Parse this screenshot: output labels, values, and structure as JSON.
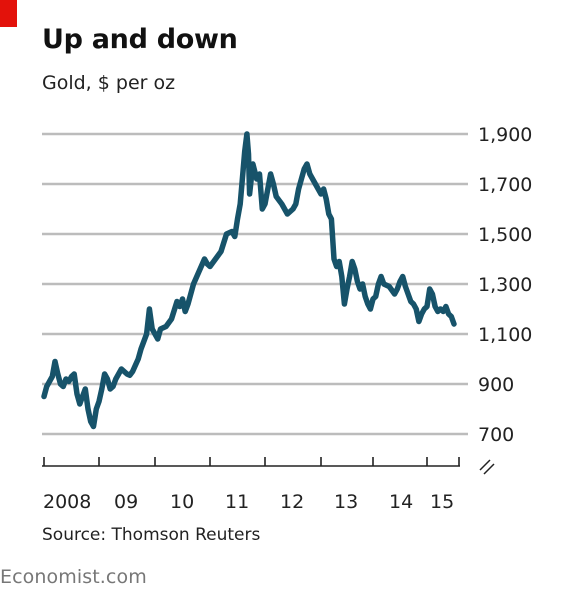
{
  "header": {
    "title": "Up and down",
    "subtitle": "Gold, $ per oz"
  },
  "footer": {
    "source": "Source: Thomson Reuters",
    "brand": "Economist.com"
  },
  "colors": {
    "accent": "#e3120b",
    "line": "#17536a",
    "grid": "#bcbcbc"
  },
  "chart_data": {
    "type": "line",
    "title": "Up and down",
    "subtitle": "Gold, $ per oz",
    "xlabel": "",
    "ylabel": "",
    "xlim": [
      2008.0,
      2015.6
    ],
    "ylim": [
      700,
      1900
    ],
    "y_ticks": [
      700,
      900,
      1100,
      1300,
      1500,
      1700,
      1900
    ],
    "y_tick_labels": [
      "700",
      "900",
      "1,100",
      "1,300",
      "1,500",
      "1,700",
      "1,900"
    ],
    "y_axis_side": "right",
    "y_axis_break": true,
    "x_ticks": [
      2008,
      2009,
      2010,
      2011,
      2012,
      2013,
      2014,
      2015
    ],
    "x_tick_labels": [
      "2008",
      "09",
      "10",
      "11",
      "12",
      "13",
      "14",
      "15"
    ],
    "grid": true,
    "series": [
      {
        "values": [
          [
            2008.0,
            850
          ],
          [
            2008.05,
            890
          ],
          [
            2008.1,
            910
          ],
          [
            2008.15,
            930
          ],
          [
            2008.2,
            990
          ],
          [
            2008.25,
            940
          ],
          [
            2008.3,
            900
          ],
          [
            2008.35,
            890
          ],
          [
            2008.4,
            920
          ],
          [
            2008.45,
            910
          ],
          [
            2008.5,
            930
          ],
          [
            2008.55,
            940
          ],
          [
            2008.6,
            860
          ],
          [
            2008.65,
            820
          ],
          [
            2008.7,
            850
          ],
          [
            2008.75,
            880
          ],
          [
            2008.8,
            800
          ],
          [
            2008.85,
            750
          ],
          [
            2008.9,
            730
          ],
          [
            2008.95,
            800
          ],
          [
            2009.0,
            830
          ],
          [
            2009.05,
            880
          ],
          [
            2009.1,
            940
          ],
          [
            2009.15,
            920
          ],
          [
            2009.2,
            880
          ],
          [
            2009.25,
            890
          ],
          [
            2009.3,
            920
          ],
          [
            2009.4,
            960
          ],
          [
            2009.5,
            940
          ],
          [
            2009.55,
            935
          ],
          [
            2009.6,
            950
          ],
          [
            2009.7,
            1000
          ],
          [
            2009.75,
            1040
          ],
          [
            2009.85,
            1100
          ],
          [
            2009.9,
            1200
          ],
          [
            2009.95,
            1120
          ],
          [
            2010.0,
            1100
          ],
          [
            2010.05,
            1080
          ],
          [
            2010.1,
            1120
          ],
          [
            2010.2,
            1130
          ],
          [
            2010.3,
            1160
          ],
          [
            2010.4,
            1230
          ],
          [
            2010.45,
            1210
          ],
          [
            2010.5,
            1240
          ],
          [
            2010.55,
            1190
          ],
          [
            2010.6,
            1220
          ],
          [
            2010.7,
            1300
          ],
          [
            2010.8,
            1350
          ],
          [
            2010.9,
            1400
          ],
          [
            2010.95,
            1380
          ],
          [
            2011.0,
            1370
          ],
          [
            2011.1,
            1400
          ],
          [
            2011.2,
            1430
          ],
          [
            2011.3,
            1500
          ],
          [
            2011.4,
            1510
          ],
          [
            2011.45,
            1490
          ],
          [
            2011.5,
            1560
          ],
          [
            2011.55,
            1620
          ],
          [
            2011.6,
            1750
          ],
          [
            2011.63,
            1830
          ],
          [
            2011.67,
            1900
          ],
          [
            2011.7,
            1820
          ],
          [
            2011.72,
            1660
          ],
          [
            2011.78,
            1780
          ],
          [
            2011.85,
            1720
          ],
          [
            2011.9,
            1740
          ],
          [
            2011.95,
            1600
          ],
          [
            2012.0,
            1620
          ],
          [
            2012.1,
            1740
          ],
          [
            2012.15,
            1700
          ],
          [
            2012.2,
            1650
          ],
          [
            2012.3,
            1620
          ],
          [
            2012.4,
            1580
          ],
          [
            2012.5,
            1600
          ],
          [
            2012.55,
            1620
          ],
          [
            2012.6,
            1680
          ],
          [
            2012.7,
            1760
          ],
          [
            2012.75,
            1780
          ],
          [
            2012.8,
            1740
          ],
          [
            2012.85,
            1720
          ],
          [
            2012.9,
            1700
          ],
          [
            2012.95,
            1680
          ],
          [
            2013.0,
            1660
          ],
          [
            2013.05,
            1680
          ],
          [
            2013.1,
            1640
          ],
          [
            2013.15,
            1580
          ],
          [
            2013.2,
            1560
          ],
          [
            2013.25,
            1400
          ],
          [
            2013.3,
            1370
          ],
          [
            2013.35,
            1390
          ],
          [
            2013.4,
            1330
          ],
          [
            2013.45,
            1220
          ],
          [
            2013.5,
            1280
          ],
          [
            2013.55,
            1330
          ],
          [
            2013.6,
            1390
          ],
          [
            2013.65,
            1360
          ],
          [
            2013.7,
            1310
          ],
          [
            2013.75,
            1280
          ],
          [
            2013.8,
            1300
          ],
          [
            2013.85,
            1250
          ],
          [
            2013.9,
            1220
          ],
          [
            2013.95,
            1200
          ],
          [
            2014.0,
            1240
          ],
          [
            2014.05,
            1250
          ],
          [
            2014.1,
            1300
          ],
          [
            2014.15,
            1330
          ],
          [
            2014.2,
            1300
          ],
          [
            2014.3,
            1290
          ],
          [
            2014.4,
            1260
          ],
          [
            2014.45,
            1280
          ],
          [
            2014.5,
            1310
          ],
          [
            2014.55,
            1330
          ],
          [
            2014.6,
            1290
          ],
          [
            2014.65,
            1260
          ],
          [
            2014.7,
            1230
          ],
          [
            2014.75,
            1220
          ],
          [
            2014.8,
            1200
          ],
          [
            2014.85,
            1150
          ],
          [
            2014.9,
            1180
          ],
          [
            2014.95,
            1200
          ],
          [
            2015.0,
            1210
          ],
          [
            2015.05,
            1280
          ],
          [
            2015.1,
            1260
          ],
          [
            2015.15,
            1210
          ],
          [
            2015.2,
            1190
          ],
          [
            2015.25,
            1200
          ],
          [
            2015.3,
            1190
          ],
          [
            2015.35,
            1210
          ],
          [
            2015.4,
            1180
          ],
          [
            2015.45,
            1170
          ],
          [
            2015.5,
            1140
          ]
        ]
      }
    ]
  }
}
